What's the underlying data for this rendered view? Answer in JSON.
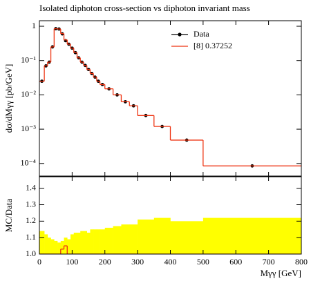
{
  "chart_data": [
    {
      "type": "step",
      "title": "Isolated diphoton cross-section vs diphoton invariant mass",
      "ylabel": "dσ/dMγγ [pb/GeV]",
      "log_y": true,
      "legend": "upper right",
      "xlim": [
        0,
        800
      ],
      "xticks": [
        0,
        100,
        200,
        300,
        400,
        500,
        600,
        700,
        800
      ],
      "ylim": [
        4.3e-05,
        1.45
      ],
      "yticks": [
        {
          "value": 1,
          "label": "1"
        },
        {
          "value": 0.1,
          "label": "10⁻¹"
        },
        {
          "value": 0.01,
          "label": "10⁻²"
        },
        {
          "value": 0.001,
          "label": "10⁻³"
        },
        {
          "value": 0.0001,
          "label": "10⁻⁴"
        }
      ],
      "bin_edges": [
        0,
        15,
        25,
        35,
        45,
        55,
        65,
        75,
        85,
        95,
        105,
        115,
        125,
        135,
        145,
        155,
        165,
        175,
        185,
        200,
        225,
        250,
        275,
        300,
        350,
        400,
        500,
        800
      ],
      "series": [
        {
          "name": "Data",
          "color": "#000000",
          "style": "points",
          "x": [
            7.5,
            20,
            30,
            40,
            50,
            60,
            70,
            80,
            90,
            100,
            110,
            120,
            130,
            140,
            150,
            160,
            170,
            180,
            192.5,
            212.5,
            237.5,
            262.5,
            287.5,
            325,
            375,
            450,
            650
          ],
          "values": [
            0.025,
            0.07,
            0.09,
            0.25,
            0.85,
            0.83,
            0.6,
            0.38,
            0.3,
            0.23,
            0.17,
            0.12,
            0.09,
            0.072,
            0.055,
            0.042,
            0.033,
            0.025,
            0.02,
            0.015,
            0.01,
            0.0063,
            0.0048,
            0.0025,
            0.0012,
            0.00048,
            8.5e-05
          ]
        },
        {
          "name": "[8] 0.37252",
          "color": "#ee3311",
          "style": "step",
          "values": [
            0.025,
            0.07,
            0.09,
            0.25,
            0.85,
            0.83,
            0.61,
            0.4,
            0.3,
            0.23,
            0.17,
            0.12,
            0.09,
            0.072,
            0.055,
            0.042,
            0.033,
            0.025,
            0.02,
            0.015,
            0.01,
            0.0063,
            0.0048,
            0.0025,
            0.0012,
            0.00048,
            8.5e-05
          ]
        }
      ]
    },
    {
      "type": "band",
      "ylabel": "MC/Data",
      "xlabel": "Mγγ [GeV]",
      "xlim": [
        0,
        800
      ],
      "xticks": [
        0,
        100,
        200,
        300,
        400,
        500,
        600,
        700,
        800
      ],
      "ylim": [
        1.0,
        1.47
      ],
      "yticks": [
        {
          "value": 1,
          "label": "1.0"
        },
        1.1,
        1.2,
        1.3,
        1.4
      ],
      "bin_edges": [
        0,
        15,
        25,
        35,
        45,
        55,
        65,
        75,
        85,
        95,
        105,
        115,
        125,
        135,
        145,
        155,
        165,
        175,
        185,
        200,
        225,
        250,
        275,
        300,
        350,
        400,
        500,
        800
      ],
      "band_color": "#ffff00",
      "band_upper": [
        1.14,
        1.12,
        1.1,
        1.09,
        1.08,
        1.07,
        1.08,
        1.1,
        1.09,
        1.12,
        1.13,
        1.13,
        1.14,
        1.14,
        1.13,
        1.15,
        1.15,
        1.15,
        1.15,
        1.16,
        1.17,
        1.18,
        1.18,
        1.21,
        1.22,
        1.2,
        1.22
      ],
      "series": [
        {
          "name": "[8] 0.37252",
          "color": "#ee3311",
          "values": [
            1.0,
            1.0,
            1.0,
            1.0,
            1.0,
            1.0,
            1.03,
            1.05,
            1.0,
            1.0,
            1.0,
            1.0,
            1.0,
            1.0,
            1.0,
            1.0,
            1.0,
            1.0,
            1.0,
            1.0,
            1.0,
            1.0,
            1.0,
            1.0,
            1.0,
            1.0,
            1.0
          ]
        }
      ]
    }
  ]
}
